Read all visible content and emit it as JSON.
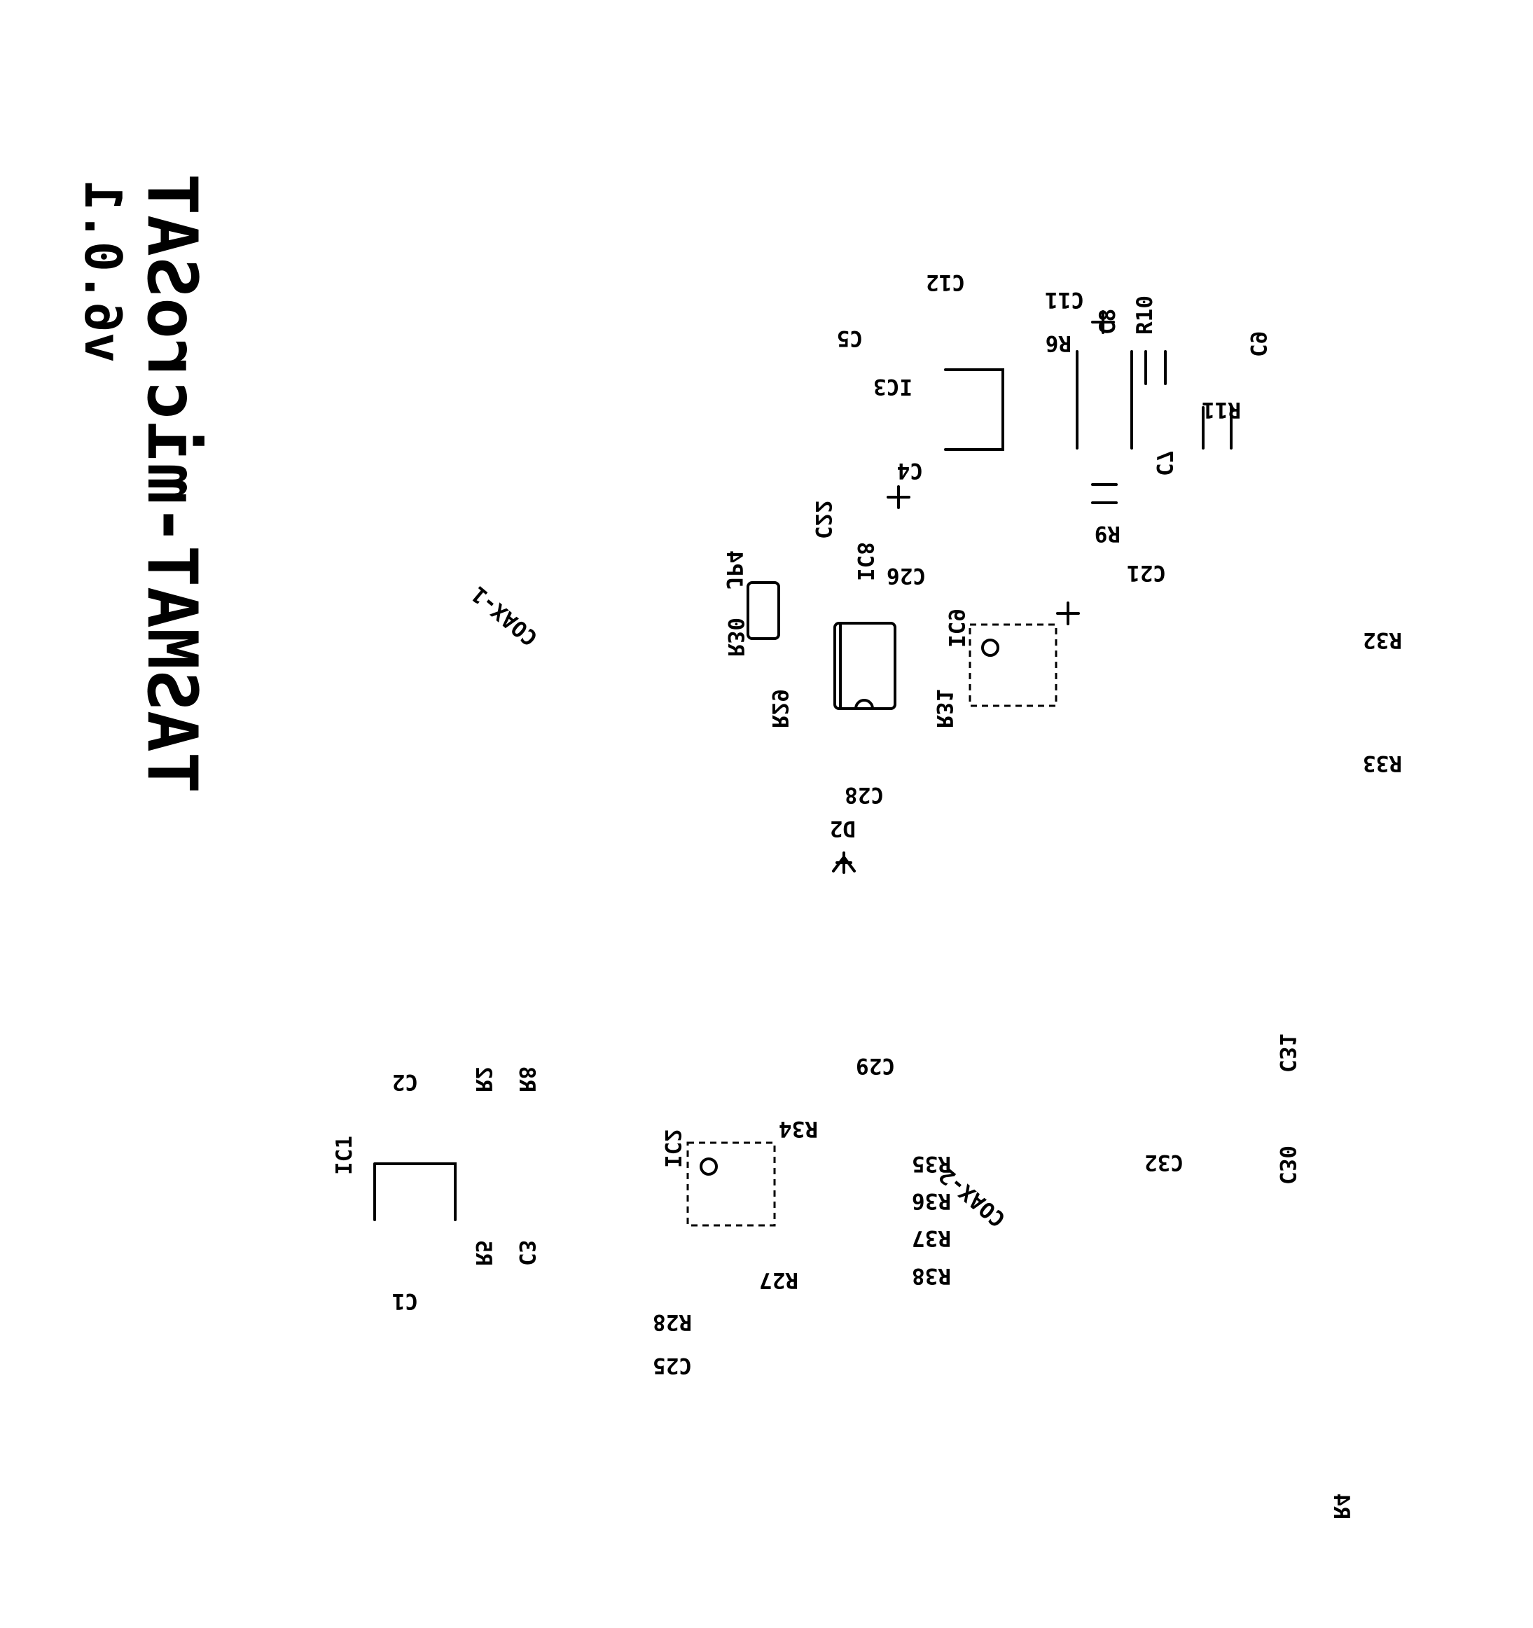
{
  "board": {
    "title": "TASMAT-microSAT",
    "version": "v6.0.1"
  },
  "labels": {
    "c12": "C12",
    "c11": "C11",
    "r6": "R6",
    "c8": "C8",
    "r10": "R10",
    "c5": "C5",
    "ic3": "IC3",
    "c9": "C9",
    "r11": "R11",
    "c4": "C4",
    "c7": "C7",
    "r9": "R9",
    "c22": "C22",
    "c26": "C26",
    "c21": "C21",
    "jp4": "JP4",
    "ic8": "IC8",
    "ic9": "IC9",
    "r32": "R32",
    "coax1": "COAX-1",
    "r30": "R30",
    "r29": "R29",
    "r31": "R31",
    "r33": "R33",
    "c28": "C28",
    "d2": "D2",
    "c29": "C29",
    "c2": "C2",
    "r2": "R2",
    "r8": "R8",
    "c31": "C31",
    "r34": "R34",
    "ic1": "IC1",
    "ic2": "IC2",
    "r35": "R35",
    "c32": "C32",
    "r36": "R36",
    "c30": "C30",
    "r37": "R37",
    "coax2": "COAX-2",
    "r38": "R38",
    "r27": "R27",
    "r5": "R5",
    "c3": "C3",
    "c1": "C1",
    "r28": "R28",
    "c25": "C25",
    "r4": "R4"
  }
}
